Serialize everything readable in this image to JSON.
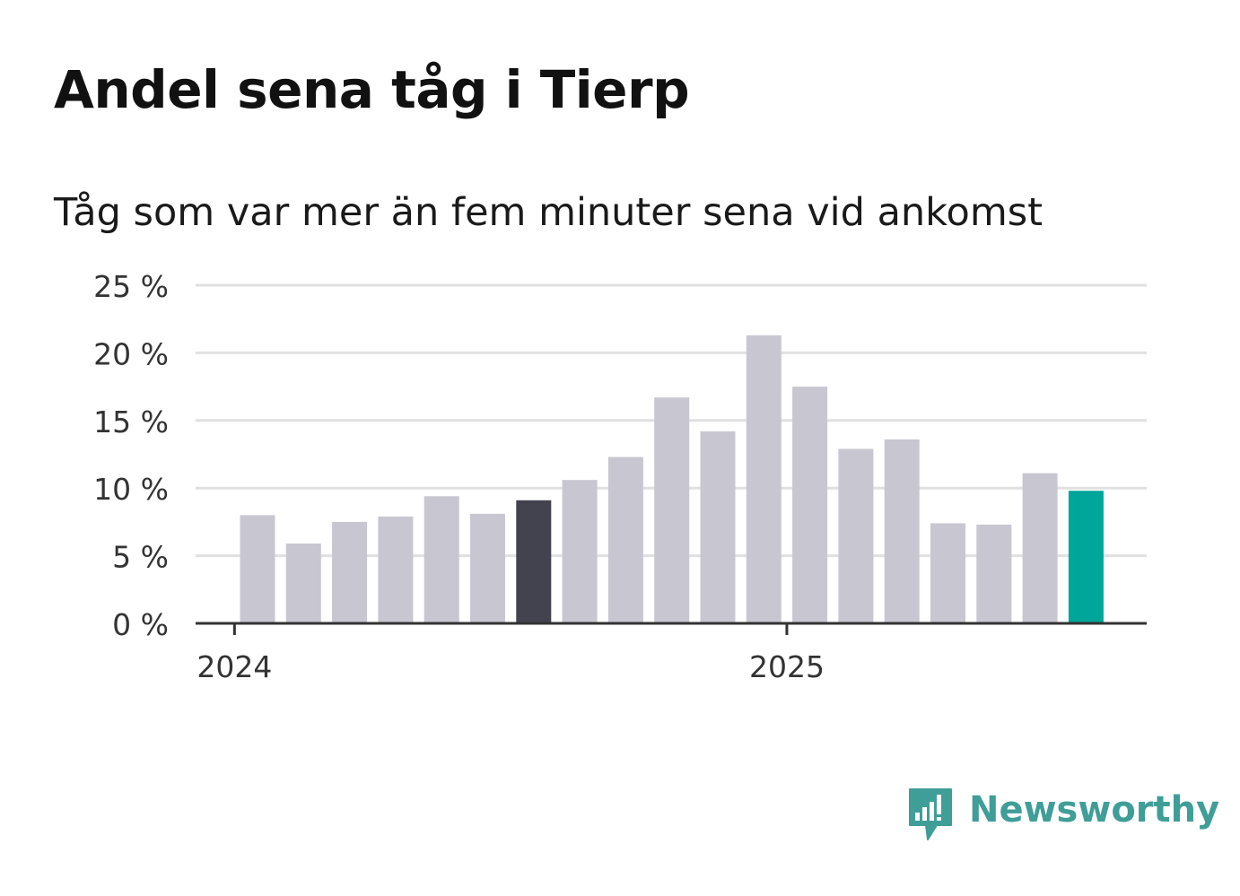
{
  "header": {
    "title": "Andel sena tåg i Tierp",
    "subtitle": "Tåg som var mer än fem minuter sena vid ankomst"
  },
  "brand": {
    "name": "Newsworthy",
    "icon": "newsworthy-logo-icon",
    "color": "#3f9e97"
  },
  "colors": {
    "bar": "#c8c7d1",
    "highlight": "#43424f",
    "latest": "#00a69a",
    "grid": "#e0e0e0",
    "axis": "#333333",
    "text": "#333333"
  },
  "chart_data": {
    "type": "bar",
    "title": "Andel sena tåg i Tierp",
    "subtitle": "Tåg som var mer än fem minuter sena vid ankomst",
    "ylim": [
      0,
      25
    ],
    "y_ticks": [
      0,
      5,
      10,
      15,
      20,
      25
    ],
    "y_tick_labels": [
      "0 %",
      "5 %",
      "10 %",
      "15 %",
      "20 %",
      "25 %"
    ],
    "x_ticks": [
      {
        "label": "2024",
        "index": -0.5
      },
      {
        "label": "2025",
        "index": 11.5
      }
    ],
    "grid": true,
    "legend": "none",
    "values": [
      8.0,
      5.9,
      7.5,
      7.9,
      9.4,
      8.1,
      9.1,
      10.6,
      12.3,
      16.7,
      14.2,
      21.3,
      17.5,
      12.9,
      13.6,
      7.4,
      7.3,
      11.1,
      9.8
    ],
    "highlight_index": 6,
    "latest_index": 18
  }
}
